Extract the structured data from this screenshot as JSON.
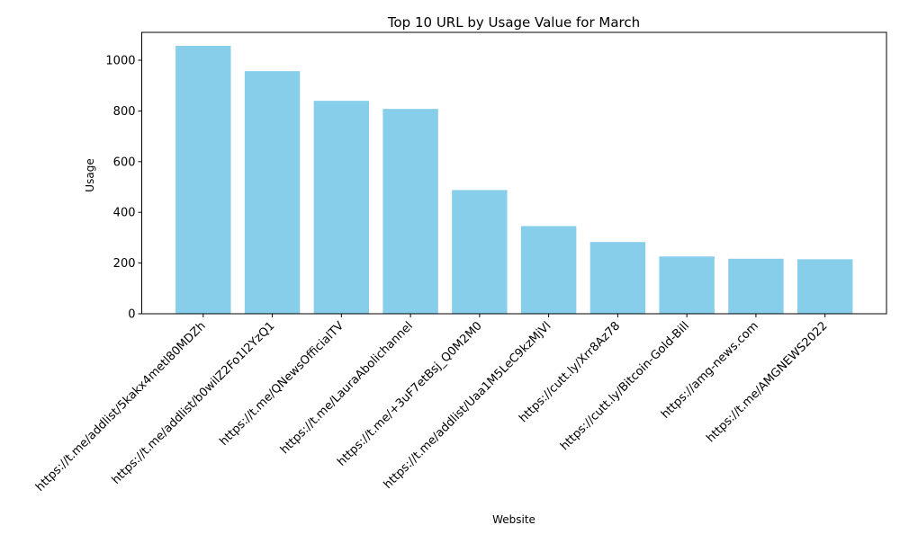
{
  "chart_data": {
    "type": "bar",
    "title": "Top 10 URL by Usage Value for March",
    "xlabel": "Website",
    "ylabel": "Usage",
    "categories": [
      "https://t.me/addlist/5kakx4metl80MDZh",
      "https://t.me/addlist/b0wilZ2Fo1I2YzQ1",
      "https://t.me/QNewsOfficialTV",
      "https://t.me/LauraAbolichannel",
      "https://t.me/+3uF7etBsj_Q0M2M0",
      "https://t.me/addlist/Uaa1M5LeC9kzMjVl",
      "https://cutt.ly/Xrr8Az78",
      "https://cutt.ly/Bitcoin-Gold-Bill",
      "https://amg-news.com",
      "https://t.me/AMGNEWS2022"
    ],
    "values": [
      1057,
      957,
      840,
      808,
      488,
      346,
      283,
      226,
      217,
      215
    ],
    "ylim": [
      0,
      1110
    ],
    "yticks": [
      0,
      200,
      400,
      600,
      800,
      1000
    ],
    "bar_color": "#87CEEB",
    "grid": false,
    "legend": "none"
  }
}
